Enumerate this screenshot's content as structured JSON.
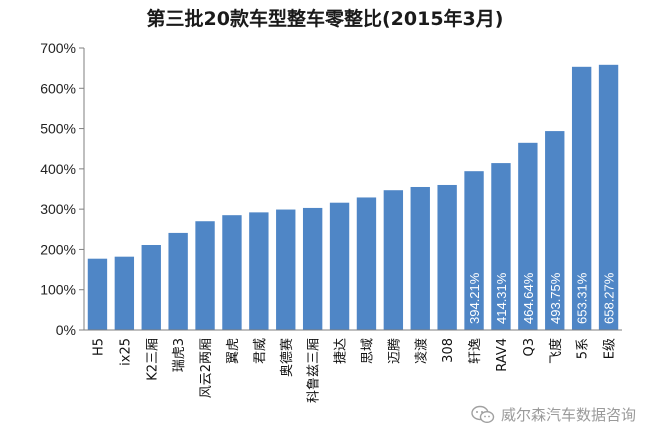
{
  "chart_data": {
    "type": "bar",
    "title": "第三批20款车型整车零整比(2015年3月)",
    "xlabel": "",
    "ylabel": "",
    "ylim": [
      0,
      700
    ],
    "y_tick_labels": [
      "0%",
      "100%",
      "200%",
      "300%",
      "400%",
      "500%",
      "600%",
      "700%"
    ],
    "grid": false,
    "categories": [
      "H5",
      "ix25",
      "K2三厢",
      "瑞虎3",
      "风云2两厢",
      "翼虎",
      "君威",
      "奥德赛",
      "科鲁兹三厢",
      "捷达",
      "思域",
      "迈腾",
      "凌渡",
      "308",
      "轩逸",
      "RAV4",
      "Q3",
      "飞度",
      "5系",
      "E级"
    ],
    "values": [
      177,
      182,
      211,
      241,
      270,
      285,
      292,
      299,
      303,
      316,
      329,
      347,
      355,
      360,
      394.21,
      414.31,
      464.64,
      493.75,
      653.31,
      658.27
    ],
    "data_labels": [
      "",
      "",
      "",
      "",
      "",
      "",
      "",
      "",
      "",
      "",
      "",
      "",
      "",
      "",
      "394.21%",
      "414.31%",
      "464.64%",
      "493.75%",
      "653.31%",
      "658.27%"
    ],
    "bar_color": "#4f86c6",
    "axis_color": "#7f7f7f"
  },
  "watermark": {
    "text": "威尔森汽车数据咨询",
    "icon": "wechat-icon"
  }
}
